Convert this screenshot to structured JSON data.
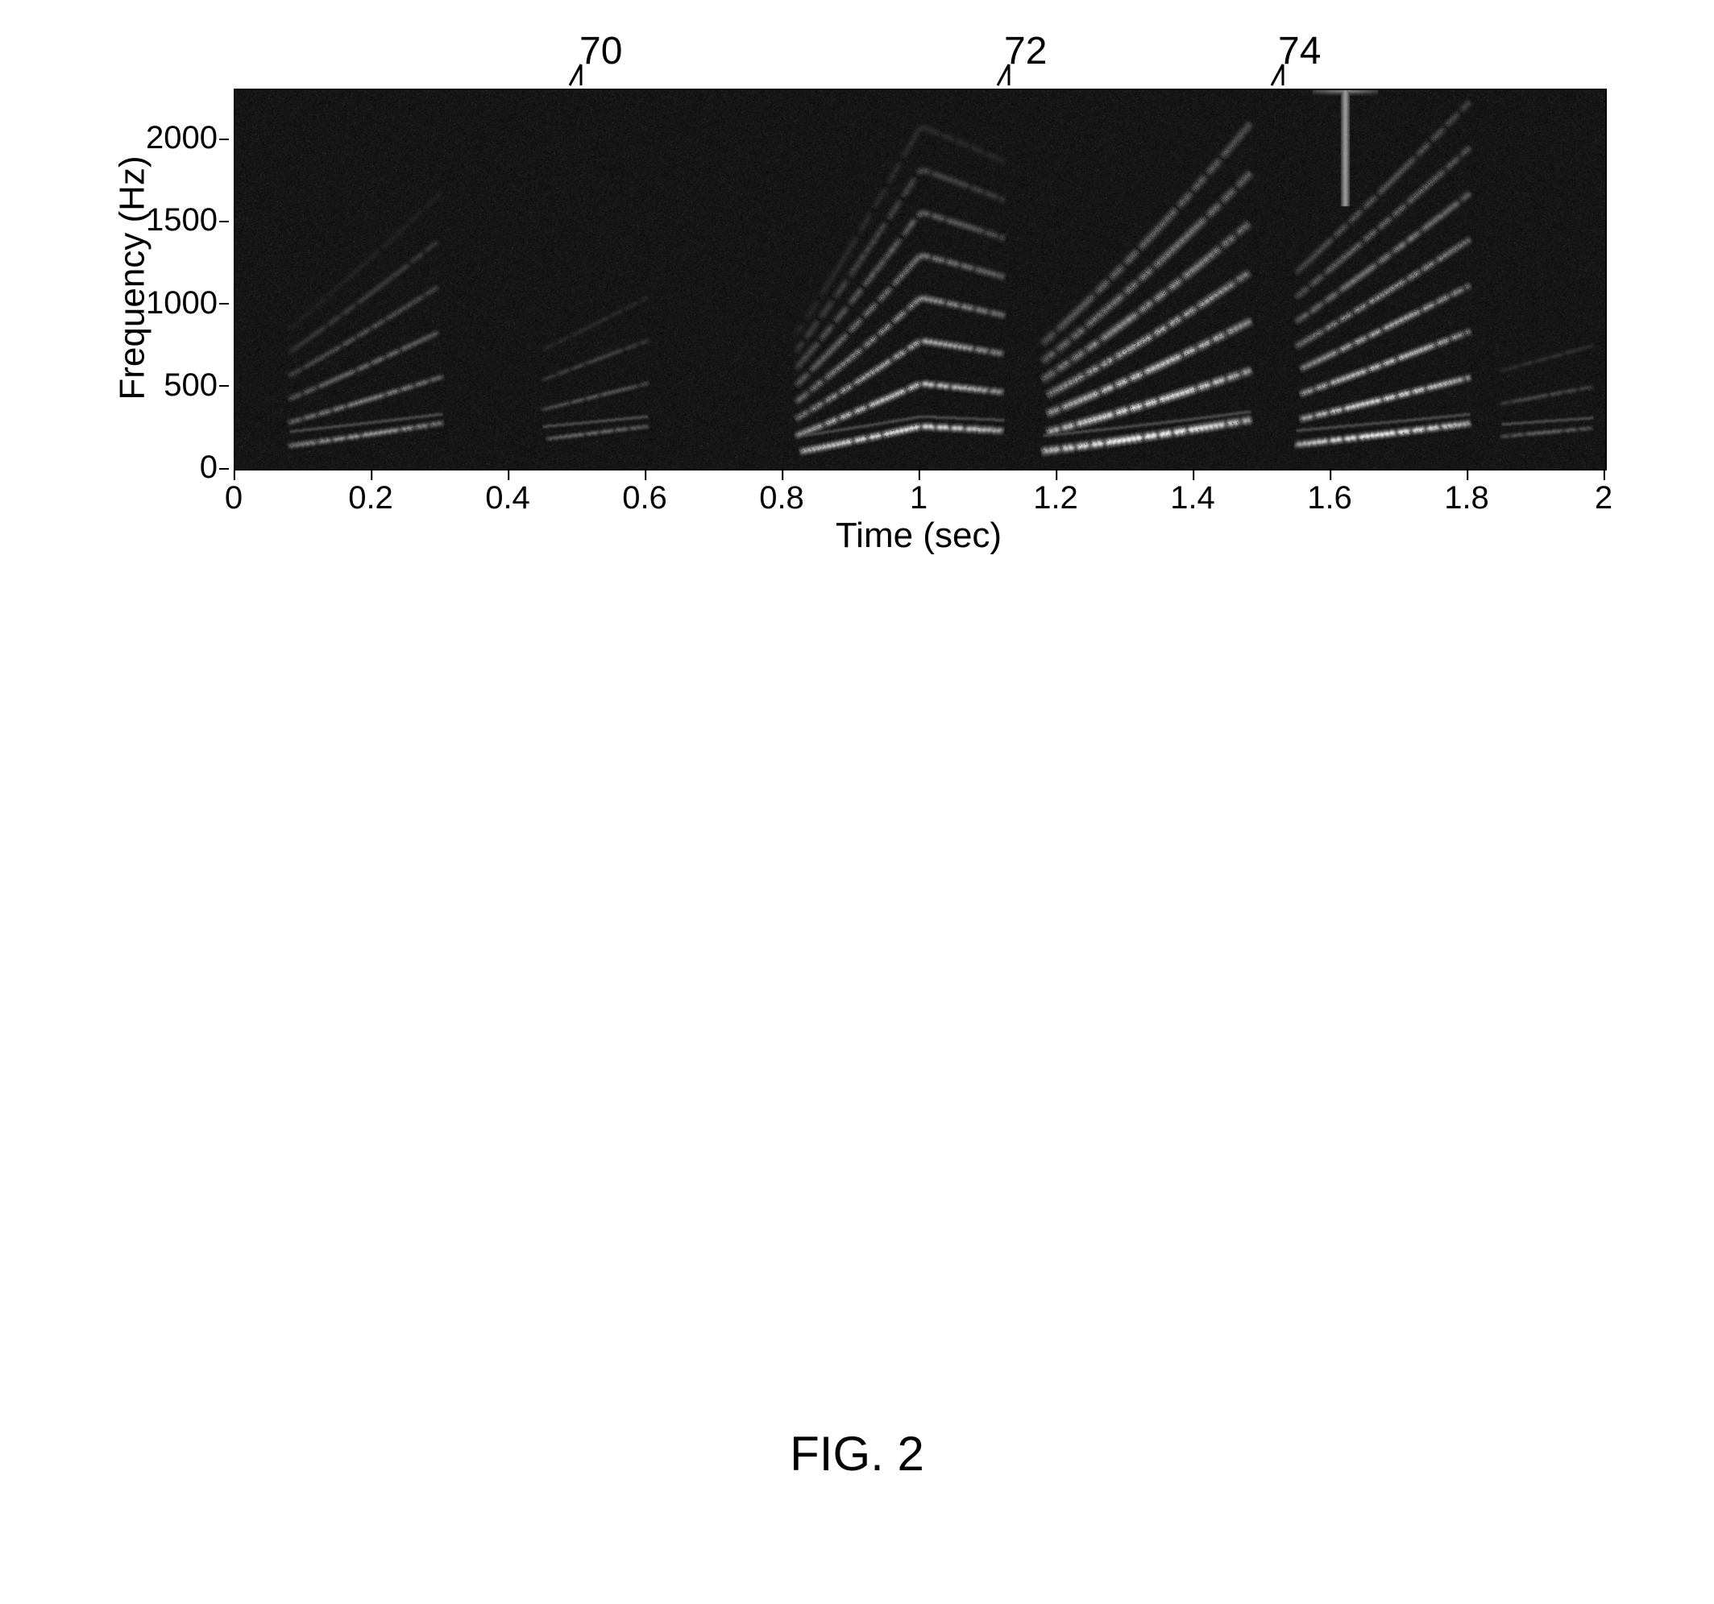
{
  "figure_caption": "FIG. 2",
  "chart": {
    "type": "spectrogram",
    "xlabel": "Time (sec)",
    "ylabel": "Frequency (Hz)",
    "xlim": [
      0,
      2
    ],
    "ylim": [
      0,
      2300
    ],
    "xticks": [
      0,
      0.2,
      0.4,
      0.6,
      0.8,
      1.0,
      1.2,
      1.4,
      1.6,
      1.8,
      2.0
    ],
    "xtick_labels": [
      "0",
      "0.2",
      "0.4",
      "0.6",
      "0.8",
      "1",
      "1.2",
      "1.4",
      "1.6",
      "1.8",
      "2"
    ],
    "yticks": [
      0,
      500,
      1000,
      1500,
      2000
    ],
    "ytick_labels": [
      "0",
      "500",
      "1000",
      "1500",
      "2000"
    ],
    "background_color": "#0a0a0a",
    "grid_color": "#000000",
    "label_fontsize": 44,
    "tick_fontsize": 40,
    "noise_intensity": 0.05,
    "noise_speckle_intensity": 0.12,
    "colormap": {
      "low": "#0a0a0a",
      "mid": "#6b6b6b",
      "high": "#f8f8f8"
    },
    "harmonic_events": [
      {
        "t_start": 0.08,
        "t_end": 0.3,
        "f0_start": 260,
        "f0_end": 280,
        "n_harmonics": 7,
        "max_amp": 0.55,
        "amp_decay": 0.1,
        "sweep": [
          [
            0,
            0.55
          ],
          [
            1,
            1.0
          ]
        ],
        "thickness": 10
      },
      {
        "t_start": 0.45,
        "t_end": 0.6,
        "f0_start": 260,
        "f0_end": 260,
        "n_harmonics": 6,
        "max_amp": 0.35,
        "amp_decay": 0.09,
        "sweep": [
          [
            0,
            0.7
          ],
          [
            1,
            1.0
          ]
        ],
        "thickness": 8
      },
      {
        "t_start": 0.82,
        "t_end": 1.12,
        "f0_start": 230,
        "f0_end": 260,
        "n_harmonics": 8,
        "max_amp": 0.85,
        "amp_decay": 0.11,
        "sweep": [
          [
            0,
            0.45
          ],
          [
            0.6,
            1.05
          ],
          [
            1,
            0.9
          ]
        ],
        "thickness": 12
      },
      {
        "t_start": 1.18,
        "t_end": 1.48,
        "f0_start": 220,
        "f0_end": 260,
        "n_harmonics": 7,
        "max_amp": 0.95,
        "amp_decay": 0.1,
        "sweep": [
          [
            0,
            0.5
          ],
          [
            1,
            1.15
          ]
        ],
        "thickness": 14
      },
      {
        "t_start": 1.55,
        "t_end": 1.8,
        "f0_start": 250,
        "f0_end": 265,
        "n_harmonics": 8,
        "max_amp": 0.9,
        "amp_decay": 0.09,
        "sweep": [
          [
            0,
            0.6
          ],
          [
            1,
            1.05
          ]
        ],
        "thickness": 12
      },
      {
        "t_start": 1.85,
        "t_end": 1.98,
        "f0_start": 250,
        "f0_end": 250,
        "n_harmonics": 5,
        "max_amp": 0.3,
        "amp_decay": 0.1,
        "sweep": [
          [
            0,
            0.8
          ],
          [
            1,
            1.0
          ]
        ],
        "thickness": 8
      }
    ],
    "vertical_bars": [
      {
        "t": 1.62,
        "f_low": 1600,
        "f_high": 2300,
        "amp": 0.55,
        "width": 10
      }
    ]
  },
  "callouts": [
    {
      "label": "70",
      "x_time": 0.54,
      "line_dx": -22,
      "line_dy": 26
    },
    {
      "label": "72",
      "x_time": 1.16,
      "line_dx": -18,
      "line_dy": 26
    },
    {
      "label": "74",
      "x_time": 1.56,
      "line_dx": -18,
      "line_dy": 26
    }
  ]
}
